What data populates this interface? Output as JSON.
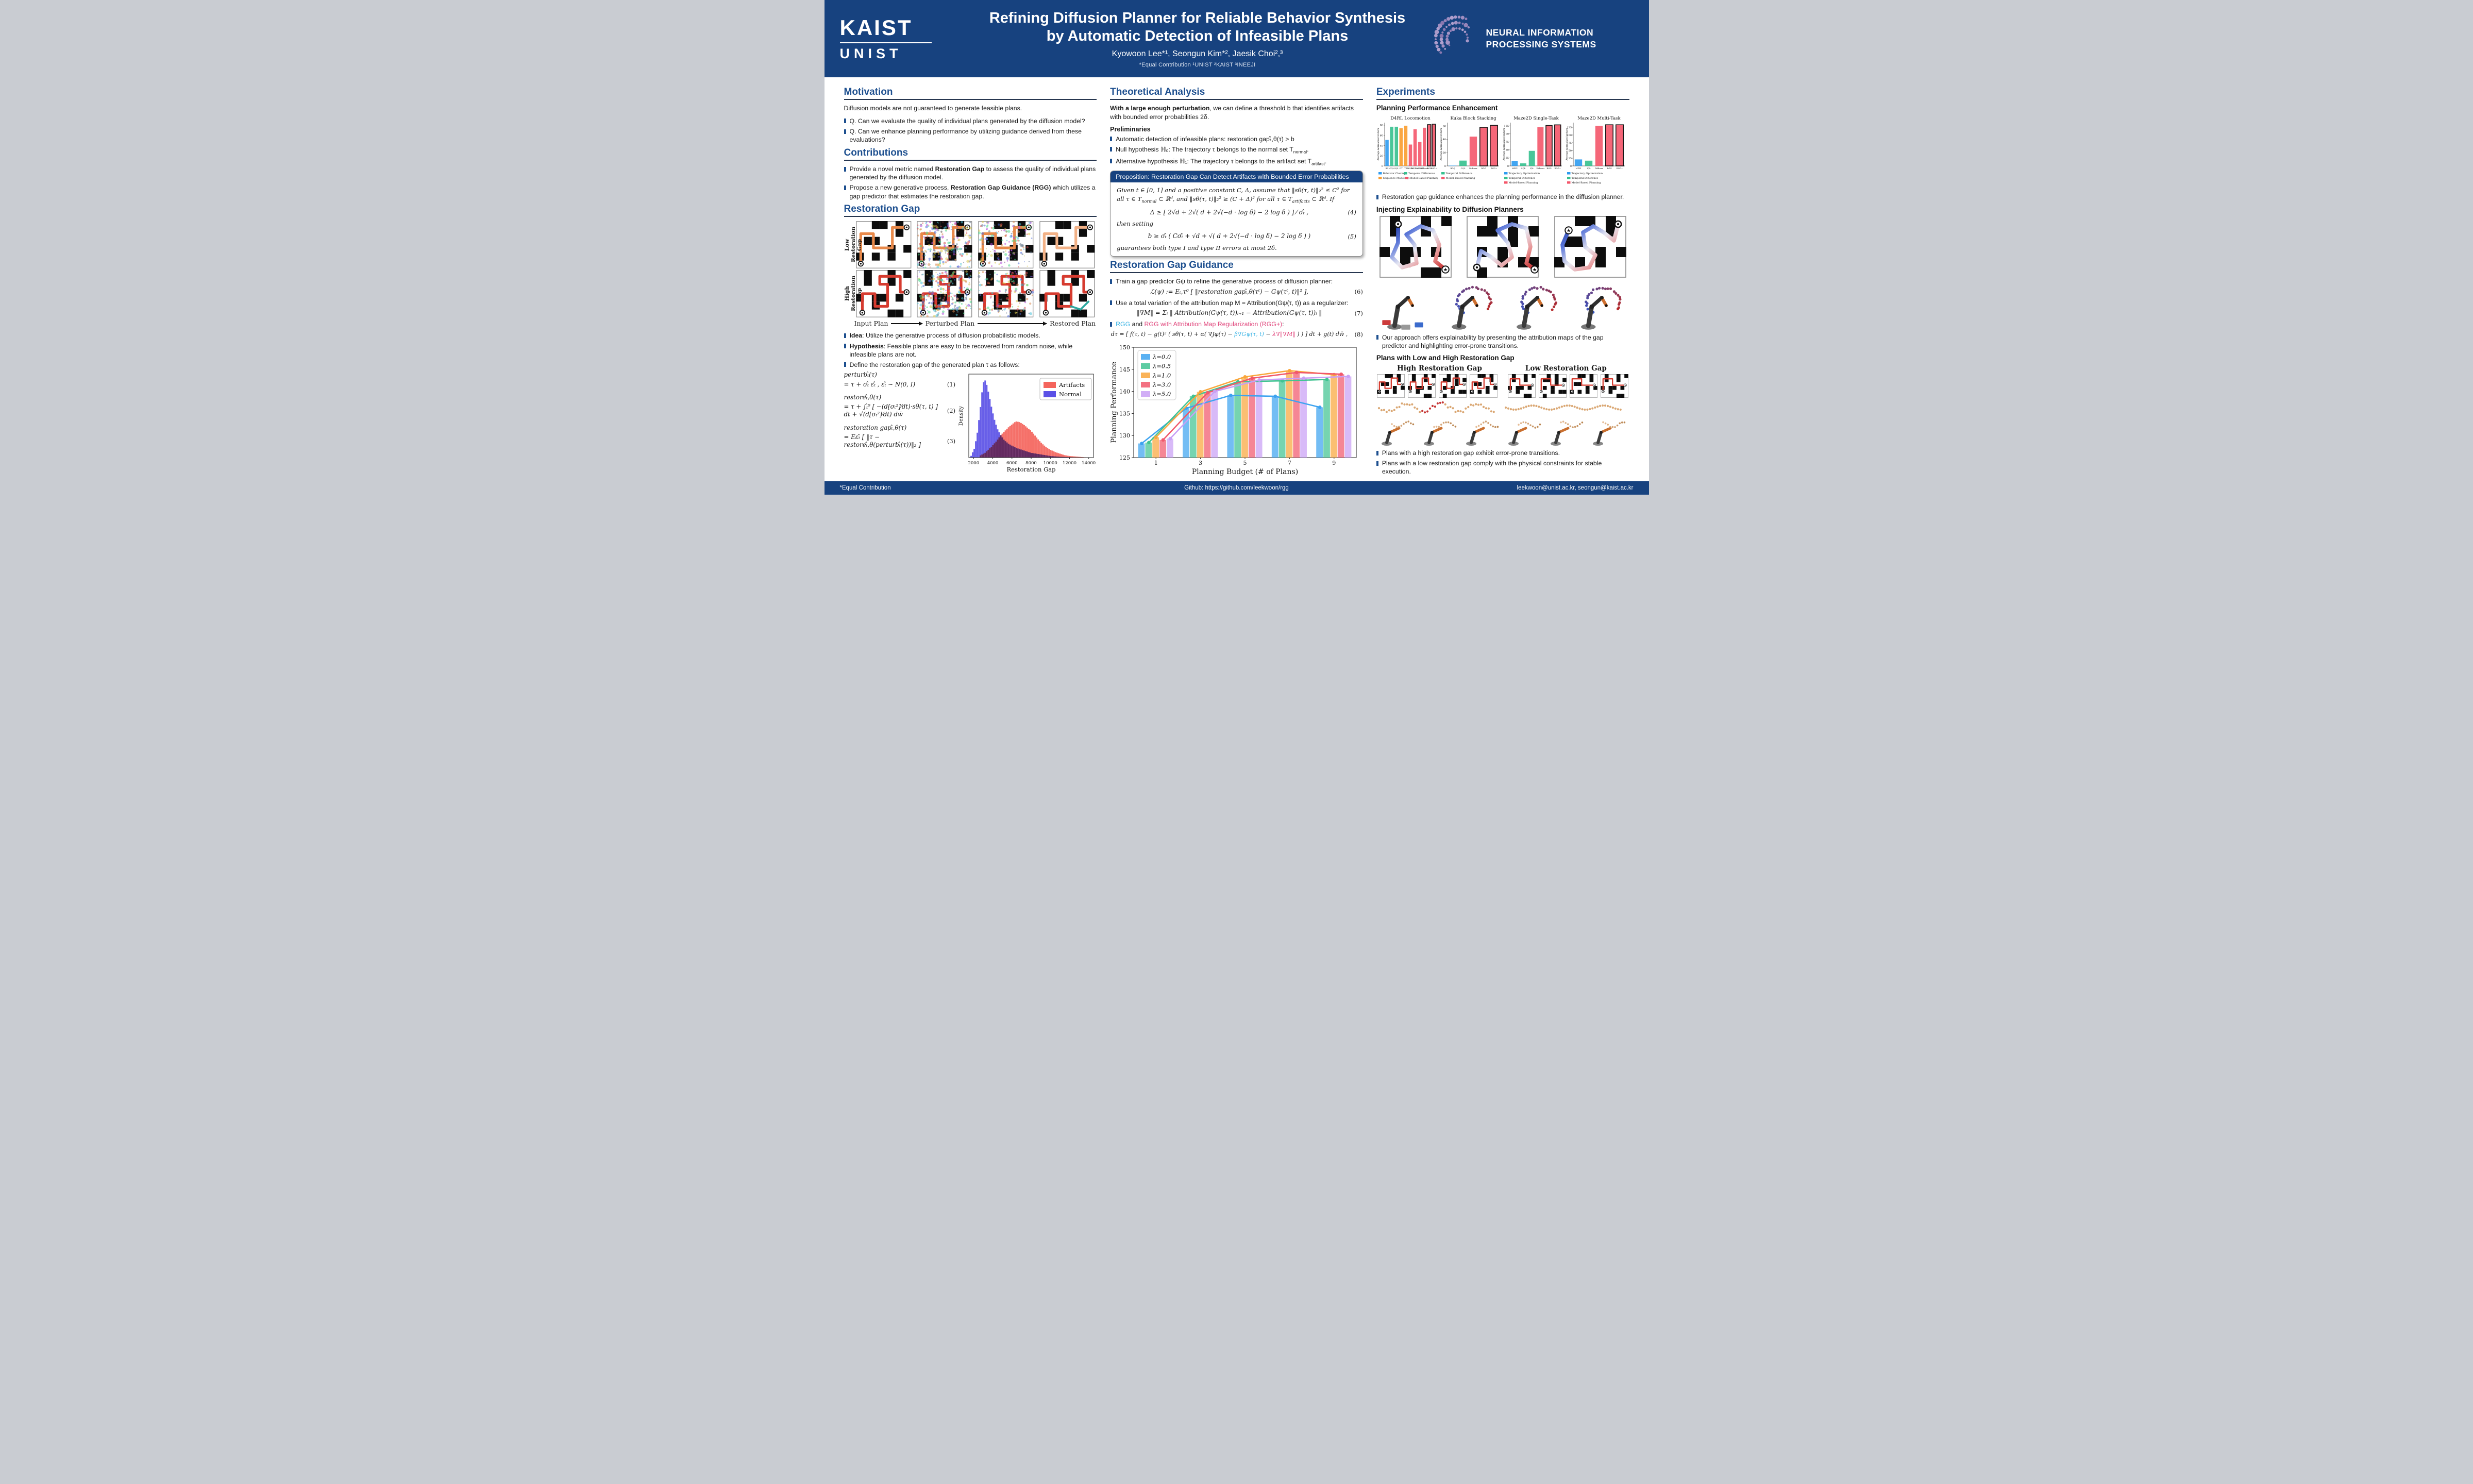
{
  "colors": {
    "header_bg": "#17427f",
    "heading_blue": "#1d4f8f",
    "rgg_cyan": "#3cb4e5",
    "rgg_pink": "#e0457b",
    "artifacts_red": "#f4645c",
    "normal_blue": "#5a50e6"
  },
  "header": {
    "kaist_logo": "KAIST",
    "unist_logo": "UNIST",
    "title_line1": "Refining Diffusion Planner for Reliable Behavior Synthesis",
    "title_line2": "by Automatic Detection of Infeasible Plans",
    "authors": "Kyowoon Lee*¹, Seongun Kim*², Jaesik Choi²,³",
    "affiliations": "*Equal Contribution        ¹UNIST        ²KAIST        ³INEEJI",
    "neurips_line1": "NEURAL INFORMATION",
    "neurips_line2": "PROCESSING SYSTEMS"
  },
  "left": {
    "motivation": {
      "heading": "Motivation",
      "intro": "Diffusion models are not guaranteed to generate feasible plans.",
      "bullets": [
        "Q. Can we evaluate the quality of individual plans generated by the diffusion model?",
        "Q. Can we enhance planning performance by utilizing guidance derived from these evaluations?"
      ]
    },
    "contributions": {
      "heading": "Contributions",
      "b1_pre": "Provide a novel metric named ",
      "b1_bold": "Restoration Gap",
      "b1_post": " to assess the quality of individual plans generated by the diffusion model.",
      "b2_pre": "Propose a new generative process, ",
      "b2_bold": "Restoration Gap Guidance (RGG)",
      "b2_post": " which utilizes a gap predictor that estimates the restoration gap."
    },
    "restoration_gap": {
      "heading": "Restoration Gap",
      "row_label_low": "Low Restoration Gap",
      "row_label_high": "High Restoration Gap",
      "cap_input": "Input Plan",
      "cap_perturbed": "Perturbed Plan",
      "cap_restored": "Restored Plan",
      "idea_bold": "Idea",
      "idea_text": ": Utilize the generative process of diffusion probabilistic models.",
      "hyp_bold": "Hypothesis",
      "hyp_text": ": Feasible plans are easy to be recovered from random noise, while infeasible plans are not.",
      "define_text": "Define the restoration gap of the generated plan τ as follows:",
      "eq1_lhs": "perturbₜ̂(τ)",
      "eq1_rhs": "= τ + σₜ̂ εₜ̂ ,   εₜ̂ ∼ N(0, I)",
      "eq1_num": "(1)",
      "eq2_lhs": "restoreₜ̂,θ(τ)",
      "eq2_rhs": "= τ + ∫ₜ̂⁰ [ −(d[σₜ²]⁄dt)·sθ(τ, t) ] dt + √(d[σₜ²]⁄dt) dw̄",
      "eq2_num": "(2)",
      "eq3_lhs": "restoration gapₜ̂,θ(τ)",
      "eq3_rhs": "= Eεₜ̂ [ ‖τ − restoreₜ̂,θ(perturbₜ̂(τ))‖₂ ]",
      "eq3_num": "(3)"
    }
  },
  "middle": {
    "theoretical": {
      "heading": "Theoretical Analysis",
      "intro_bold": "With a large enough perturbation",
      "intro_rest": ", we can define a threshold b that identifies artifacts with bounded error probabilities 2δ.",
      "preliminaries": "Preliminaries",
      "prelim1": "Automatic detection of infeasible plans:  restoration gapₜ̂,θ(τ) > b",
      "prelim2_a": "Null hypothesis ℍ₀: The trajectory τ belongs to the normal set T",
      "prelim2_sub": "normal",
      "prelim2_b": ".",
      "prelim3_a": "Alternative hypothesis ℍ₁: The trajectory τ belongs to the artifact set T",
      "prelim3_sub": "artifact",
      "prelim3_b": ".",
      "prop_title": "Proposition: Restoration Gap Can Detect Artifacts with Bounded Error Probabilities",
      "prop_body1_a": "Given t ∈ [0, 1] and a positive constant C, Δ, assume that ‖sθ(τ, t)‖₂² ≤ C² for all τ ∈ T",
      "prop_body1_sub1": "normal",
      "prop_body1_b": " ⊂ ℝᵈ, and ‖sθ(τ, t)‖₂² ≥ (C + Δ)² for all τ ∈ T",
      "prop_body1_sub2": "artifacts",
      "prop_body1_c": " ⊂ ℝᵈ. If",
      "eq4": "Δ ≥ [ 2√d + 2√( d + 2√(−d · log δ) − 2 log δ ) ] ⁄ σₜ̂ ,",
      "eq4_num": "(4)",
      "prop_body2": "then setting",
      "eq5": "b ≥ σₜ̂ ( Cσₜ̂ + √d + √( d + 2√(−d · log δ) − 2 log δ ) )",
      "eq5_num": "(5)",
      "prop_body3": "guarantees both type I and type II errors at most 2δ."
    },
    "rgg": {
      "heading": "Restoration Gap Guidance",
      "b1": "Train a gap predictor Gψ to refine the generative process of diffusion planner:",
      "eq6": "ℒ(ψ) := Eₜ,τ⁰ [ ‖restoration gapₜ̂,θ(τᵗ) − Gψ(τᵗ, t)‖² ],",
      "eq6_num": "(6)",
      "b2": "Use a total variation of the attribution map M = Attribution(Gψ(τ, t)) as a regularizer:",
      "eq7": "‖∇M‖ = Σᵢ ‖ Attribution(Gψ(τ, t))ᵢ₊₁ − Attribution(Gψ(τ, t))ᵢ ‖",
      "eq7_num": "(7)",
      "b3_rgg": "RGG",
      "b3_mid": " and ",
      "b3_rggplus": "RGG with Attribution Map Regularization (RGG+)",
      "b3_end": ":",
      "eq8_pre": "dτ = [ f(τ, t) − g(t)² ( sθ(τ, t) + α( ∇Jφ(τ) − ",
      "eq8_cyan": "β∇Gψ(τ, t)",
      "eq8_mid": " − ",
      "eq8_pink": "λ∇‖∇M‖",
      "eq8_post": " ) ) ] dt + g(t) dw̄ ,",
      "eq8_num": "(8)"
    }
  },
  "right": {
    "heading": "Experiments",
    "sub1": "Planning Performance Enhancement",
    "bullet1": "Restoration gap guidance enhances the planning performance in the diffusion planner.",
    "sub2": "Injecting Explainability to Diffusion Planners",
    "bullet2": "Our approach offers explainability by presenting the attribution maps of the gap predictor and highlighting error-prone transitions.",
    "sub3": "Plans with Low and High Restoration Gap",
    "col_high": "High Restoration Gap",
    "col_low": "Low Restoration Gap",
    "bullet3": "Plans with a high restoration gap exhibit error-prone transitions.",
    "bullet4": "Plans with a low restoration gap comply with the physical constraints for stable execution."
  },
  "footer": {
    "left": "*Equal Contribution",
    "center": "Github: https://github.com/leekwoon/rgg",
    "right": "leekwoon@unist.ac.kr, seongun@kaist.ac.kr"
  },
  "chart_data": [
    {
      "id": "restoration-gap-histogram",
      "type": "histogram",
      "title": "",
      "xlabel": "Restoration Gap",
      "ylabel": "Density",
      "xlim": [
        1500,
        14500
      ],
      "x_ticks": [
        2000,
        4000,
        6000,
        8000,
        10000,
        12000,
        14000
      ],
      "legend_position": "upper right",
      "series": [
        {
          "name": "Artifacts",
          "color": "#f4645c",
          "points": [
            [
              2600,
              0.02
            ],
            [
              3200,
              0.06
            ],
            [
              3800,
              0.13
            ],
            [
              4400,
              0.21
            ],
            [
              4800,
              0.28
            ],
            [
              5200,
              0.33
            ],
            [
              5600,
              0.38
            ],
            [
              6000,
              0.42
            ],
            [
              6400,
              0.46
            ],
            [
              6800,
              0.45
            ],
            [
              7200,
              0.42
            ],
            [
              7600,
              0.38
            ],
            [
              8000,
              0.34
            ],
            [
              8400,
              0.28
            ],
            [
              8800,
              0.22
            ],
            [
              9200,
              0.17
            ],
            [
              9600,
              0.13
            ],
            [
              10000,
              0.1
            ],
            [
              10500,
              0.07
            ],
            [
              11000,
              0.05
            ],
            [
              11500,
              0.03
            ],
            [
              12000,
              0.02
            ],
            [
              13000,
              0.01
            ],
            [
              14000,
              0.0
            ]
          ]
        },
        {
          "name": "Normal",
          "color": "#5a50e6",
          "points": [
            [
              1700,
              0.01
            ],
            [
              2100,
              0.12
            ],
            [
              2400,
              0.32
            ],
            [
              2700,
              0.62
            ],
            [
              2900,
              0.85
            ],
            [
              3100,
              1.0
            ],
            [
              3300,
              0.96
            ],
            [
              3600,
              0.8
            ],
            [
              3900,
              0.62
            ],
            [
              4200,
              0.47
            ],
            [
              4500,
              0.36
            ],
            [
              4800,
              0.29
            ],
            [
              5200,
              0.22
            ],
            [
              5600,
              0.18
            ],
            [
              6000,
              0.15
            ],
            [
              6500,
              0.12
            ],
            [
              7000,
              0.1
            ],
            [
              7500,
              0.08
            ],
            [
              8000,
              0.06
            ],
            [
              8500,
              0.05
            ],
            [
              9000,
              0.04
            ],
            [
              10000,
              0.02
            ],
            [
              11000,
              0.01
            ],
            [
              12000,
              0.005
            ],
            [
              13000,
              0.0
            ]
          ]
        }
      ]
    },
    {
      "id": "budget-ablation",
      "type": "bar+line",
      "title": "",
      "xlabel": "Planning Budget (# of Plans)",
      "ylabel": "Planning Performance",
      "categories": [
        1,
        3,
        5,
        7,
        9
      ],
      "ylim": [
        125,
        150
      ],
      "yticks": [
        125,
        130,
        135,
        140,
        145,
        150
      ],
      "legend_position": "upper left",
      "series": [
        {
          "name": "λ=0.0",
          "color": "#3da3f0",
          "values": [
            128.2,
            136.2,
            139.1,
            138.9,
            136.4
          ]
        },
        {
          "name": "λ=0.5",
          "color": "#41c392",
          "values": [
            128.4,
            138.9,
            142.2,
            142.4,
            142.7
          ]
        },
        {
          "name": "λ=1.0",
          "color": "#f9a63b",
          "values": [
            129.6,
            139.9,
            143.3,
            144.7,
            143.8
          ]
        },
        {
          "name": "λ=3.0",
          "color": "#f1586c",
          "values": [
            129.0,
            139.7,
            143.0,
            144.3,
            143.9
          ]
        },
        {
          "name": "λ=5.0",
          "color": "#c9a0f5",
          "values": [
            129.3,
            140.0,
            142.6,
            143.0,
            143.4
          ]
        }
      ]
    },
    {
      "id": "d4rl-locomotion",
      "type": "bar",
      "title": "D4RL Locomotion",
      "ylabel": "Average normalized return",
      "categories": [
        "BC",
        "CQL",
        "IQL",
        "DT",
        "TT",
        "MOPO",
        "MOReL",
        "MBOP",
        "Diffuser",
        "RGG",
        "RGG+"
      ],
      "values": [
        51,
        77,
        77,
        74,
        79,
        42,
        72,
        47,
        75,
        81,
        82
      ],
      "bar_colors": [
        "#2e9bf0",
        "#35c08e",
        "#35c08e",
        "#f99c2d",
        "#f99c2d",
        "#f4566a",
        "#f4566a",
        "#f4566a",
        "#f4566a",
        "#f4566a",
        "#f4566a"
      ],
      "outlined": [
        false,
        false,
        false,
        false,
        false,
        false,
        false,
        false,
        false,
        true,
        true
      ],
      "ylim": [
        0,
        85
      ],
      "yticks": [
        0,
        20,
        40,
        60,
        80
      ],
      "legend": [
        {
          "label": "Behavior Cloning",
          "color": "#2e9bf0"
        },
        {
          "label": "Temporal Difference",
          "color": "#35c08e"
        },
        {
          "label": "Sequence Modeling",
          "color": "#f99c2d"
        },
        {
          "label": "Model-Based Planning",
          "color": "#f4566a"
        }
      ]
    },
    {
      "id": "kuka-block-stacking",
      "type": "bar",
      "title": "Kuka Block Stacking",
      "ylabel": "Average normalized return",
      "categories": [
        "BCQ",
        "CQL",
        "Diffuser",
        "RGG",
        "RGG+"
      ],
      "values": [
        0.5,
        8,
        44,
        58,
        61
      ],
      "bar_colors": [
        "#2e9bf0",
        "#35c08e",
        "#f4566a",
        "#f4566a",
        "#f4566a"
      ],
      "outlined": [
        false,
        false,
        false,
        true,
        true
      ],
      "ylim": [
        0,
        65
      ],
      "yticks": [
        0,
        20,
        40,
        60
      ],
      "legend": [
        {
          "label": "Temporal Difference",
          "color": "#35c08e"
        },
        {
          "label": "Model-Based Planning",
          "color": "#f4566a"
        }
      ]
    },
    {
      "id": "maze2d-single-task",
      "type": "bar",
      "title": "Maze2D Single-Task",
      "ylabel": "Average normalized return",
      "categories": [
        "MPPI",
        "CQL",
        "IQL",
        "Diffuser",
        "RGG",
        "RGG+"
      ],
      "values": [
        16,
        8,
        47,
        121,
        126,
        128
      ],
      "bar_colors": [
        "#2e9bf0",
        "#35c08e",
        "#35c08e",
        "#f4566a",
        "#f4566a",
        "#f4566a"
      ],
      "outlined": [
        false,
        false,
        false,
        false,
        true,
        true
      ],
      "ylim": [
        0,
        135
      ],
      "yticks": [
        0,
        25,
        50,
        75,
        100,
        125
      ],
      "legend": [
        {
          "label": "Trajectory Optimization",
          "color": "#2e9bf0"
        },
        {
          "label": "Temporal Difference",
          "color": "#35c08e"
        },
        {
          "label": "Model-Based Planning",
          "color": "#f4566a"
        }
      ]
    },
    {
      "id": "maze2d-multi-task",
      "type": "bar",
      "title": "Maze2D Multi-Task",
      "ylabel": "Average normalized return",
      "categories": [
        "MPPI",
        "IQL",
        "Diffuser",
        "RGG",
        "RGG+"
      ],
      "values": [
        21,
        17,
        130,
        133,
        133
      ],
      "bar_colors": [
        "#2e9bf0",
        "#35c08e",
        "#f4566a",
        "#f4566a",
        "#f4566a"
      ],
      "outlined": [
        false,
        false,
        false,
        true,
        true
      ],
      "ylim": [
        0,
        140
      ],
      "yticks": [
        0,
        25,
        50,
        75,
        100,
        125
      ],
      "legend": [
        {
          "label": "Trajectory Optimization",
          "color": "#2e9bf0"
        },
        {
          "label": "Temporal Difference",
          "color": "#35c08e"
        },
        {
          "label": "Model-Based Planning",
          "color": "#f4566a"
        }
      ]
    }
  ]
}
